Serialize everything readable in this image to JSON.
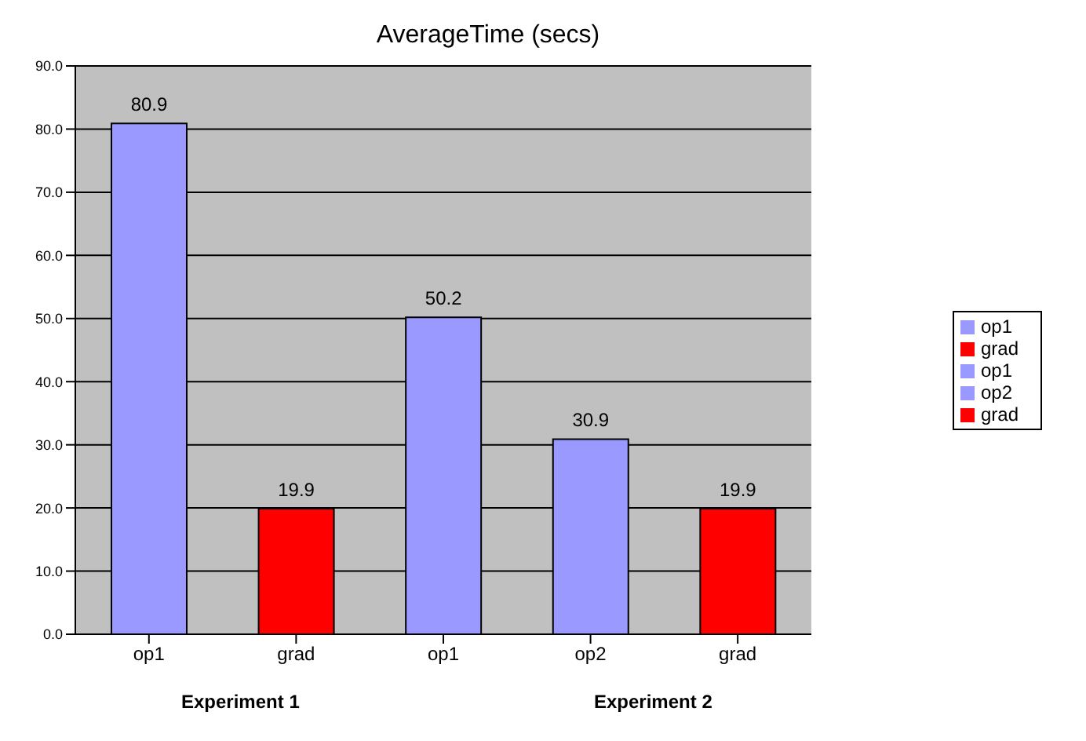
{
  "chart_data": {
    "type": "bar",
    "title": "AverageTime (secs)",
    "categories": [
      "op1",
      "grad",
      "op1",
      "op2",
      "grad"
    ],
    "series": [
      {
        "name": "op1",
        "color": "#9999ff",
        "values": [
          80.9,
          null,
          null,
          null,
          null
        ]
      },
      {
        "name": "grad",
        "color": "#ff0000",
        "values": [
          null,
          19.9,
          null,
          null,
          null
        ]
      },
      {
        "name": "op1",
        "color": "#9999ff",
        "values": [
          null,
          null,
          50.2,
          null,
          null
        ]
      },
      {
        "name": "op2",
        "color": "#9999ff",
        "values": [
          null,
          null,
          null,
          30.9,
          null
        ]
      },
      {
        "name": "grad",
        "color": "#ff0000",
        "values": [
          null,
          null,
          null,
          null,
          19.9
        ]
      }
    ],
    "stacked": true,
    "ylim": [
      0,
      90
    ],
    "yticks": [
      {
        "value": 0,
        "label": "0.0"
      },
      {
        "value": 10,
        "label": "10.0"
      },
      {
        "value": 20,
        "label": "20.0"
      },
      {
        "value": 30,
        "label": "30.0"
      },
      {
        "value": 40,
        "label": "40.0"
      },
      {
        "value": 50,
        "label": "50.0"
      },
      {
        "value": 60,
        "label": "60.0"
      },
      {
        "value": 70,
        "label": "70.0"
      },
      {
        "value": 80,
        "label": "80.0"
      },
      {
        "value": 90,
        "label": "90.0"
      }
    ],
    "grid": "y",
    "legend": "right",
    "data_labels": true,
    "annotations": [
      "Experiment 1",
      "Experiment 2"
    ]
  }
}
